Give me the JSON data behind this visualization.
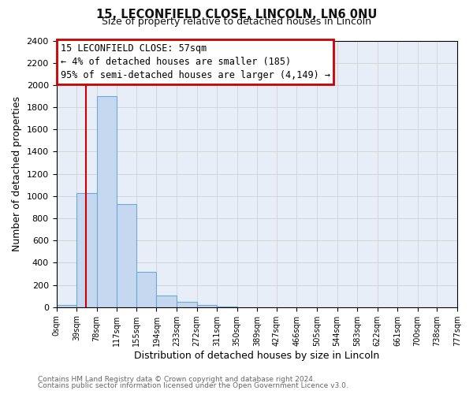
{
  "title1": "15, LECONFIELD CLOSE, LINCOLN, LN6 0NU",
  "title2": "Size of property relative to detached houses in Lincoln",
  "xlabel": "Distribution of detached houses by size in Lincoln",
  "ylabel": "Number of detached properties",
  "bin_edges": [
    0,
    39,
    78,
    117,
    155,
    194,
    233,
    272,
    311,
    350,
    389,
    427,
    466,
    505,
    544,
    583,
    622,
    661,
    700,
    738,
    777
  ],
  "bin_labels": [
    "0sqm",
    "39sqm",
    "78sqm",
    "117sqm",
    "155sqm",
    "194sqm",
    "233sqm",
    "272sqm",
    "311sqm",
    "350sqm",
    "389sqm",
    "427sqm",
    "466sqm",
    "505sqm",
    "544sqm",
    "583sqm",
    "622sqm",
    "661sqm",
    "700sqm",
    "738sqm",
    "777sqm"
  ],
  "bar_heights": [
    20,
    1025,
    1900,
    930,
    315,
    105,
    50,
    20,
    5,
    0,
    0,
    0,
    0,
    0,
    0,
    0,
    0,
    0,
    0,
    0
  ],
  "bar_color": "#c5d8f0",
  "bar_edge_color": "#6aaad4",
  "property_line_x": 57,
  "ylim": [
    0,
    2400
  ],
  "yticks": [
    0,
    200,
    400,
    600,
    800,
    1000,
    1200,
    1400,
    1600,
    1800,
    2000,
    2200,
    2400
  ],
  "annotation_title": "15 LECONFIELD CLOSE: 57sqm",
  "annotation_line1": "← 4% of detached houses are smaller (185)",
  "annotation_line2": "95% of semi-detached houses are larger (4,149) →",
  "annotation_box_color": "#ffffff",
  "annotation_box_edge": "#cc0000",
  "red_line_color": "#cc0000",
  "grid_color": "#cccccc",
  "footer1": "Contains HM Land Registry data © Crown copyright and database right 2024.",
  "footer2": "Contains public sector information licensed under the Open Government Licence v3.0.",
  "chart_bg": "#e8eef8",
  "fig_bg": "#ffffff"
}
